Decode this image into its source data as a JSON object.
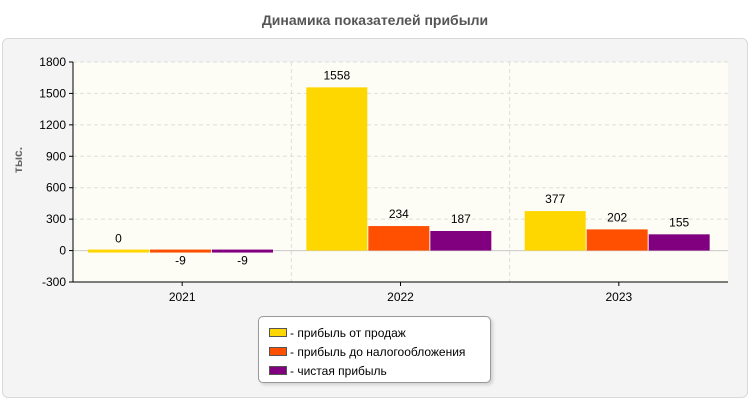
{
  "chart_data": {
    "type": "bar",
    "title": "Динамика показателей прибыли",
    "ylabel": "тыс.",
    "xlabel": "",
    "categories": [
      "2021",
      "2022",
      "2023"
    ],
    "ylim": [
      -300,
      1800
    ],
    "yticks": [
      -300,
      0,
      300,
      600,
      900,
      1200,
      1500,
      1800
    ],
    "grid": true,
    "legend_position": "bottom-center",
    "series": [
      {
        "name": "- прибыль от продаж",
        "color": "#FFD700",
        "values": [
          0,
          1558,
          377
        ]
      },
      {
        "name": "- прибыль до налогообложения",
        "color": "#FF4F00",
        "values": [
          -9,
          234,
          202
        ]
      },
      {
        "name": "- чистая прибыль",
        "color": "#800080",
        "values": [
          -9,
          187,
          155
        ]
      }
    ]
  }
}
